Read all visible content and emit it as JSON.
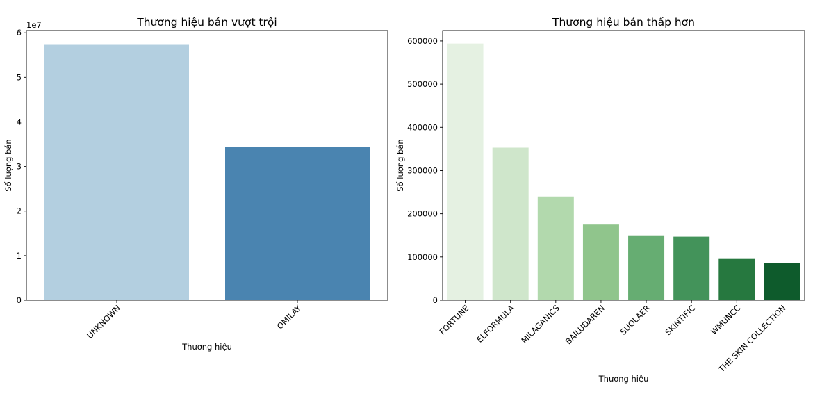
{
  "chart_data": [
    {
      "type": "bar",
      "title": "Thương hiệu bán vượt trội",
      "xlabel": "Thương hiệu",
      "ylabel": "Số lượng bán",
      "categories": [
        "UNKNOWN",
        "OMILAY"
      ],
      "values": [
        57300000,
        34400000
      ],
      "colors": [
        "#b3cfe0",
        "#4a84b0"
      ],
      "ylim": [
        0,
        60500000
      ],
      "yticks": [
        0,
        10000000,
        20000000,
        30000000,
        40000000,
        50000000,
        60000000
      ],
      "ytick_labels": [
        "0",
        "1",
        "2",
        "3",
        "4",
        "5",
        "6"
      ],
      "offset_label": "1e7",
      "grid": false,
      "legend": "none"
    },
    {
      "type": "bar",
      "title": "Thương hiệu bán thấp hơn",
      "xlabel": "Thương hiệu",
      "ylabel": "Số lượng bán",
      "categories": [
        "FORTUNE",
        "ELFORMULA",
        "MILAGANICS",
        "BAILUDAREN",
        "SUOLAER",
        "SKINTIFIC",
        "WMUNCC",
        "THE SKIN COLLECTION"
      ],
      "values": [
        594000,
        353000,
        240000,
        175000,
        150000,
        147000,
        97000,
        86000
      ],
      "colors": [
        "#e5f1e2",
        "#cfe6cb",
        "#b2d9ad",
        "#90c58c",
        "#66ad72",
        "#43935a",
        "#26783f",
        "#0e5b2c"
      ],
      "ylim": [
        0,
        624000
      ],
      "yticks": [
        0,
        100000,
        200000,
        300000,
        400000,
        500000,
        600000
      ],
      "ytick_labels": [
        "0",
        "100000",
        "200000",
        "300000",
        "400000",
        "500000",
        "600000"
      ],
      "grid": false,
      "legend": "none"
    }
  ]
}
